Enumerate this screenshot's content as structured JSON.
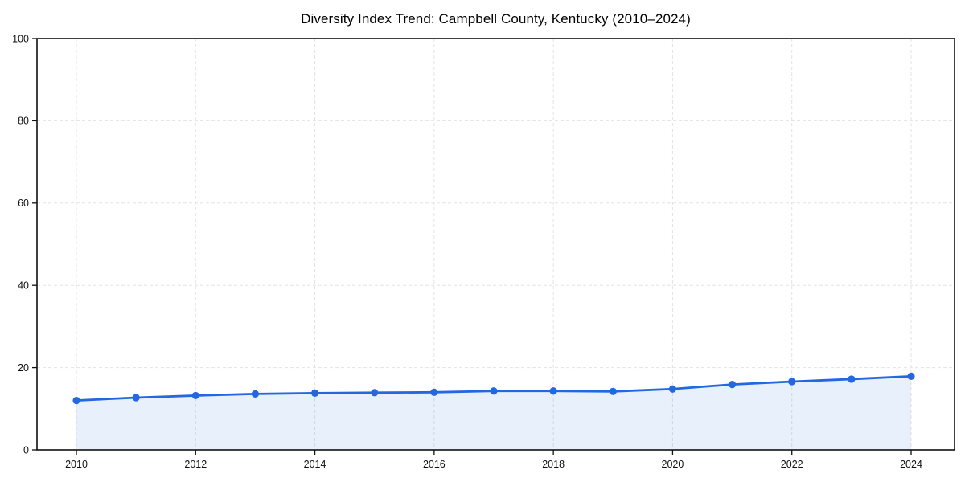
{
  "chart_data": {
    "type": "line",
    "title": "Diversity Index Trend: Campbell County, Kentucky (2010–2024)",
    "x": [
      2010,
      2011,
      2012,
      2013,
      2014,
      2015,
      2016,
      2017,
      2018,
      2019,
      2020,
      2021,
      2022,
      2023,
      2024
    ],
    "series": [
      {
        "name": "Diversity Index",
        "values": [
          12.0,
          12.7,
          13.2,
          13.6,
          13.8,
          13.9,
          14.0,
          14.3,
          14.3,
          14.2,
          14.8,
          15.9,
          16.6,
          17.2,
          17.9
        ]
      }
    ],
    "xticks": [
      2010,
      2012,
      2014,
      2016,
      2018,
      2020,
      2022,
      2024
    ],
    "yticks": [
      0,
      20,
      40,
      60,
      80,
      100
    ],
    "ylim": [
      0,
      100
    ],
    "xlabel": "",
    "ylabel": "",
    "grid": true,
    "legend": "none",
    "marker": "circle",
    "colors": {
      "line": "#2268e0",
      "marker": "#2268e0",
      "fill": "rgba(34, 104, 224, 0.10)",
      "grid": "#e3e3e3",
      "axis": "#111111",
      "tick_label": "#111111",
      "title": "#000000",
      "background": "#ffffff"
    }
  }
}
